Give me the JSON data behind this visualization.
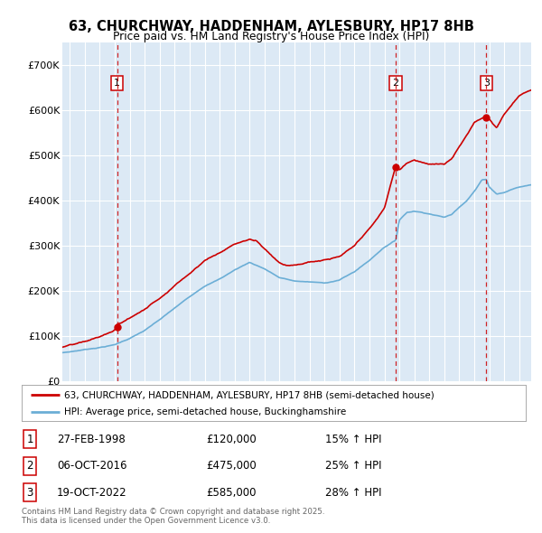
{
  "title_line1": "63, CHURCHWAY, HADDENHAM, AYLESBURY, HP17 8HB",
  "title_line2": "Price paid vs. HM Land Registry's House Price Index (HPI)",
  "background_color": "#dce9f5",
  "plot_bg_color": "#dce9f5",
  "fig_bg_color": "#ffffff",
  "hpi_color": "#6baed6",
  "price_color": "#cc0000",
  "dashed_color": "#cc0000",
  "sale_points": [
    {
      "date_num": 1998.15,
      "price": 120000,
      "label": "1"
    },
    {
      "date_num": 2016.76,
      "price": 475000,
      "label": "2"
    },
    {
      "date_num": 2022.8,
      "price": 585000,
      "label": "3"
    }
  ],
  "legend_line1": "63, CHURCHWAY, HADDENHAM, AYLESBURY, HP17 8HB (semi-detached house)",
  "legend_line2": "HPI: Average price, semi-detached house, Buckinghamshire",
  "table_rows": [
    {
      "num": "1",
      "date": "27-FEB-1998",
      "price": "£120,000",
      "change": "15% ↑ HPI"
    },
    {
      "num": "2",
      "date": "06-OCT-2016",
      "price": "£475,000",
      "change": "25% ↑ HPI"
    },
    {
      "num": "3",
      "date": "19-OCT-2022",
      "price": "£585,000",
      "change": "28% ↑ HPI"
    }
  ],
  "footnote": "Contains HM Land Registry data © Crown copyright and database right 2025.\nThis data is licensed under the Open Government Licence v3.0.",
  "ylim": [
    0,
    750000
  ],
  "xlim_start": 1994.5,
  "xlim_end": 2025.8,
  "yticks": [
    0,
    100000,
    200000,
    300000,
    400000,
    500000,
    600000,
    700000
  ],
  "ylabels": [
    "£0",
    "£100K",
    "£200K",
    "£300K",
    "£400K",
    "£500K",
    "£600K",
    "£700K"
  ]
}
